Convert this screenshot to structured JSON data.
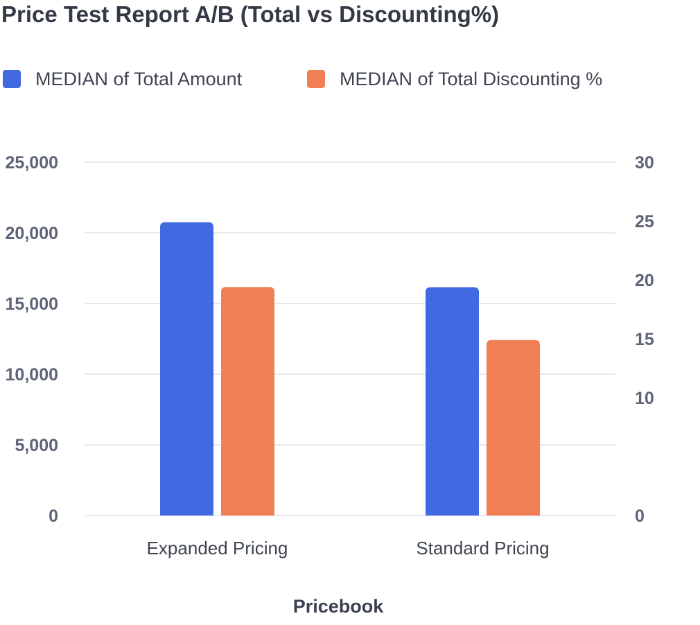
{
  "chart_data": {
    "type": "bar",
    "title": "Price Test Report A/B (Total vs Discounting%)",
    "xlabel": "Pricebook",
    "categories": [
      "Expanded Pricing",
      "Standard Pricing"
    ],
    "series": [
      {
        "name": "MEDIAN of Total Amount",
        "values": [
          20750,
          16150
        ],
        "color": "#4169e1",
        "axis": "left"
      },
      {
        "name": "MEDIAN of Total Discounting %",
        "values": [
          19.4,
          14.9
        ],
        "color": "#f27e56",
        "axis": "right"
      }
    ],
    "y_left": {
      "lim": [
        0,
        25000
      ],
      "ticks": [
        0,
        5000,
        10000,
        15000,
        20000,
        25000
      ],
      "tick_labels": [
        "0",
        "5,000",
        "10,000",
        "15,000",
        "20,000",
        "25,000"
      ]
    },
    "y_right": {
      "lim": [
        0,
        30
      ],
      "ticks": [
        0,
        10,
        15,
        20,
        25,
        30
      ],
      "tick_labels": [
        "0",
        "10",
        "15",
        "20",
        "25",
        "30"
      ]
    },
    "grid": true,
    "legend_position": "top-left"
  }
}
